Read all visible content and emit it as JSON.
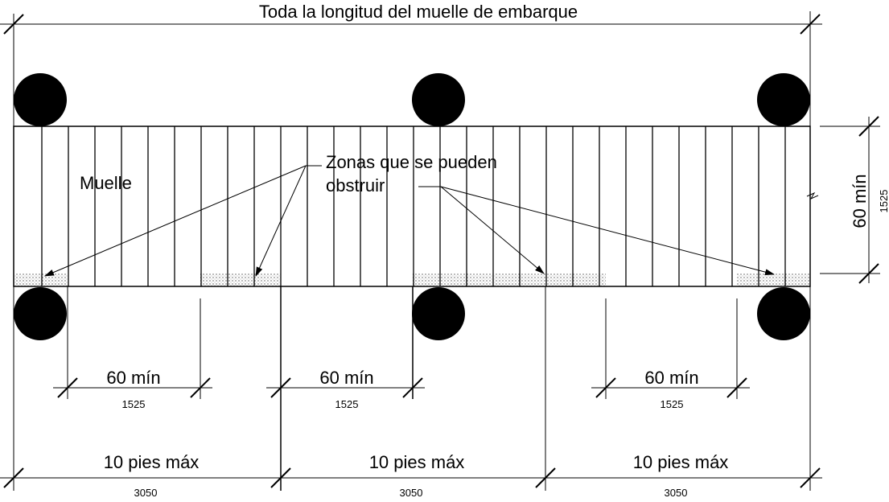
{
  "diagram": {
    "title": "Toda la longitud del muelle de embarque",
    "dock_label": "Muelle",
    "zones_label_line1": "Zonas que se pueden",
    "zones_label_line2": "obstruir",
    "dock_width_label": "60 mín",
    "dock_width_metric": "1525",
    "gap_dimensions": [
      {
        "label": "60 mín",
        "metric": "1525"
      },
      {
        "label": "60 mín",
        "metric": "1525"
      },
      {
        "label": "60 mín",
        "metric": "1525"
      }
    ],
    "spacing_dimensions": [
      {
        "label": "10 pies máx",
        "metric": "3050"
      },
      {
        "label": "10 pies máx",
        "metric": "3050"
      },
      {
        "label": "10 pies máx",
        "metric": "3050"
      }
    ]
  }
}
